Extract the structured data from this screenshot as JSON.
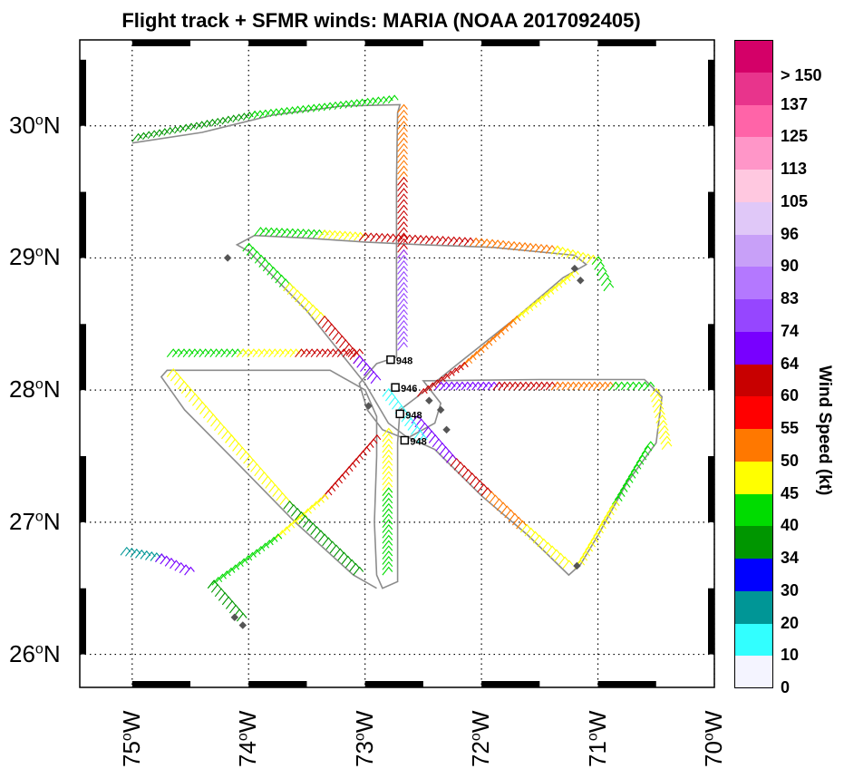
{
  "title": "Flight track + SFMR winds: MARIA (NOAA 2017092405)",
  "lat_labels": [
    {
      "deg": "30",
      "hem": "N"
    },
    {
      "deg": "29",
      "hem": "N"
    },
    {
      "deg": "28",
      "hem": "N"
    },
    {
      "deg": "27",
      "hem": "N"
    },
    {
      "deg": "26",
      "hem": "N"
    }
  ],
  "lon_labels": [
    {
      "deg": "75",
      "hem": "W"
    },
    {
      "deg": "74",
      "hem": "W"
    },
    {
      "deg": "73",
      "hem": "W"
    },
    {
      "deg": "72",
      "hem": "W"
    },
    {
      "deg": "71",
      "hem": "W"
    },
    {
      "deg": "70",
      "hem": "W"
    }
  ],
  "colorbar": {
    "title": "Wind Speed (kt)",
    "labels": [
      "> 150",
      "137",
      "125",
      "113",
      "105",
      "96",
      "90",
      "83",
      "74",
      "64",
      "60",
      "55",
      "50",
      "45",
      "40",
      "34",
      "30",
      "20",
      "10",
      "0"
    ],
    "colors": [
      "#d40068",
      "#e8348c",
      "#ff64a8",
      "#ff96c8",
      "#ffc8e0",
      "#e0c8f8",
      "#c8a0f8",
      "#b478ff",
      "#9646ff",
      "#7800ff",
      "#c80000",
      "#ff0000",
      "#ff7800",
      "#ffff00",
      "#00dc00",
      "#009600",
      "#0000ff",
      "#009696",
      "#32ffff",
      "#f4f4ff"
    ]
  },
  "pressure_labels": [
    "948",
    "946",
    "948",
    "948"
  ],
  "map_extent": {
    "lon_min": -75.45,
    "lon_max": -70.0,
    "lat_min": 25.75,
    "lat_max": 30.65
  },
  "flight_track": [
    [
      -75.0,
      29.87
    ],
    [
      -74.4,
      29.95
    ],
    [
      -73.8,
      30.08
    ],
    [
      -73.2,
      30.15
    ],
    [
      -72.7,
      30.16
    ],
    [
      -72.72,
      30.1
    ],
    [
      -72.73,
      29.6
    ],
    [
      -72.73,
      29.1
    ],
    [
      -72.73,
      28.6
    ],
    [
      -72.73,
      28.25
    ],
    [
      -72.9,
      28.2
    ],
    [
      -73.05,
      28.05
    ],
    [
      -72.98,
      27.85
    ],
    [
      -72.85,
      27.7
    ],
    [
      -72.65,
      27.63
    ],
    [
      -72.4,
      27.75
    ],
    [
      -72.35,
      27.9
    ],
    [
      -72.5,
      28.07
    ],
    [
      -71.5,
      28.08
    ],
    [
      -70.6,
      28.08
    ],
    [
      -70.45,
      27.95
    ],
    [
      -70.5,
      27.6
    ],
    [
      -70.75,
      27.3
    ],
    [
      -71.0,
      26.9
    ],
    [
      -71.15,
      26.68
    ],
    [
      -71.25,
      26.6
    ],
    [
      -71.6,
      26.9
    ],
    [
      -72.0,
      27.2
    ],
    [
      -72.4,
      27.55
    ],
    [
      -72.65,
      27.65
    ],
    [
      -72.8,
      27.75
    ],
    [
      -72.9,
      27.9
    ],
    [
      -73.0,
      28.05
    ],
    [
      -73.5,
      28.6
    ],
    [
      -74.0,
      29.05
    ],
    [
      -74.1,
      29.1
    ],
    [
      -73.95,
      29.17
    ],
    [
      -73.5,
      29.15
    ],
    [
      -73.0,
      29.12
    ],
    [
      -72.5,
      29.1
    ],
    [
      -71.9,
      29.08
    ],
    [
      -71.2,
      29.02
    ],
    [
      -71.1,
      28.95
    ],
    [
      -71.3,
      28.85
    ],
    [
      -71.7,
      28.55
    ],
    [
      -72.2,
      28.2
    ],
    [
      -72.55,
      27.95
    ],
    [
      -72.7,
      27.85
    ],
    [
      -72.72,
      27.6
    ],
    [
      -72.72,
      27.1
    ],
    [
      -72.72,
      26.55
    ],
    [
      -72.85,
      26.5
    ],
    [
      -72.9,
      26.6
    ],
    [
      -72.92,
      27.0
    ],
    [
      -72.9,
      27.5
    ],
    [
      -72.9,
      27.8
    ],
    [
      -73.0,
      28.0
    ],
    [
      -73.3,
      28.15
    ],
    [
      -73.8,
      28.15
    ],
    [
      -74.3,
      28.15
    ],
    [
      -74.7,
      28.15
    ],
    [
      -74.75,
      28.1
    ],
    [
      -74.55,
      27.85
    ],
    [
      -74.1,
      27.45
    ],
    [
      -73.6,
      27.0
    ],
    [
      -73.1,
      26.6
    ],
    [
      -72.9,
      26.5
    ]
  ],
  "barb_segments": [
    {
      "from": [
        -75.0,
        29.88
      ],
      "to": [
        -74.0,
        30.05
      ],
      "color": "#009600"
    },
    {
      "from": [
        -74.0,
        30.05
      ],
      "to": [
        -72.8,
        30.17
      ],
      "color": "#00dc00"
    },
    {
      "from": [
        -72.72,
        30.1
      ],
      "to": [
        -72.72,
        29.55
      ],
      "color": "#ff7800"
    },
    {
      "from": [
        -72.72,
        29.55
      ],
      "to": [
        -72.72,
        29.0
      ],
      "color": "#c80000"
    },
    {
      "from": [
        -72.72,
        29.0
      ],
      "to": [
        -72.72,
        28.3
      ],
      "color": "#9646ff"
    },
    {
      "from": [
        -73.95,
        29.17
      ],
      "to": [
        -73.4,
        29.15
      ],
      "color": "#00dc00"
    },
    {
      "from": [
        -73.4,
        29.15
      ],
      "to": [
        -73.05,
        29.13
      ],
      "color": "#ffff00"
    },
    {
      "from": [
        -73.05,
        29.13
      ],
      "to": [
        -72.1,
        29.09
      ],
      "color": "#c80000"
    },
    {
      "from": [
        -72.1,
        29.09
      ],
      "to": [
        -71.4,
        29.03
      ],
      "color": "#ff7800"
    },
    {
      "from": [
        -71.4,
        29.03
      ],
      "to": [
        -71.05,
        28.95
      ],
      "color": "#ffff00"
    },
    {
      "from": [
        -71.05,
        28.95
      ],
      "to": [
        -70.95,
        28.75
      ],
      "color": "#00dc00"
    },
    {
      "from": [
        -74.05,
        29.05
      ],
      "to": [
        -73.7,
        28.75
      ],
      "color": "#00dc00"
    },
    {
      "from": [
        -73.7,
        28.75
      ],
      "to": [
        -73.4,
        28.5
      ],
      "color": "#ffff00"
    },
    {
      "from": [
        -73.4,
        28.5
      ],
      "to": [
        -73.1,
        28.2
      ],
      "color": "#c80000"
    },
    {
      "from": [
        -73.1,
        28.2
      ],
      "to": [
        -72.95,
        28.05
      ],
      "color": "#7800ff"
    },
    {
      "from": [
        -71.25,
        28.85
      ],
      "to": [
        -71.75,
        28.5
      ],
      "color": "#ffff00"
    },
    {
      "from": [
        -71.75,
        28.5
      ],
      "to": [
        -72.2,
        28.15
      ],
      "color": "#ff7800"
    },
    {
      "from": [
        -72.2,
        28.15
      ],
      "to": [
        -72.55,
        27.95
      ],
      "color": "#c80000"
    },
    {
      "from": [
        -74.7,
        28.25
      ],
      "to": [
        -74.1,
        28.25
      ],
      "color": "#00dc00"
    },
    {
      "from": [
        -74.1,
        28.25
      ],
      "to": [
        -73.6,
        28.25
      ],
      "color": "#ffff00"
    },
    {
      "from": [
        -73.6,
        28.25
      ],
      "to": [
        -73.1,
        28.25
      ],
      "color": "#c80000"
    },
    {
      "from": [
        -72.4,
        28.0
      ],
      "to": [
        -71.9,
        28.0
      ],
      "color": "#7800ff"
    },
    {
      "from": [
        -71.9,
        28.0
      ],
      "to": [
        -71.4,
        28.0
      ],
      "color": "#c80000"
    },
    {
      "from": [
        -71.4,
        28.0
      ],
      "to": [
        -70.9,
        28.0
      ],
      "color": "#ff7800"
    },
    {
      "from": [
        -70.9,
        28.0
      ],
      "to": [
        -70.6,
        28.0
      ],
      "color": "#00dc00"
    },
    {
      "from": [
        -70.55,
        27.95
      ],
      "to": [
        -70.45,
        27.55
      ],
      "color": "#ffff00"
    },
    {
      "from": [
        -70.6,
        27.55
      ],
      "to": [
        -70.9,
        27.1
      ],
      "color": "#00dc00"
    },
    {
      "from": [
        -70.9,
        27.1
      ],
      "to": [
        -71.2,
        26.65
      ],
      "color": "#ffff00"
    },
    {
      "from": [
        -71.3,
        26.65
      ],
      "to": [
        -71.7,
        26.95
      ],
      "color": "#ffff00"
    },
    {
      "from": [
        -71.7,
        26.95
      ],
      "to": [
        -72.0,
        27.2
      ],
      "color": "#ff7800"
    },
    {
      "from": [
        -72.0,
        27.2
      ],
      "to": [
        -72.3,
        27.45
      ],
      "color": "#c80000"
    },
    {
      "from": [
        -72.3,
        27.45
      ],
      "to": [
        -72.6,
        27.75
      ],
      "color": "#7800ff"
    },
    {
      "from": [
        -72.85,
        27.65
      ],
      "to": [
        -72.85,
        27.2
      ],
      "color": "#ffff00"
    },
    {
      "from": [
        -72.85,
        27.2
      ],
      "to": [
        -72.85,
        26.6
      ],
      "color": "#00dc00"
    },
    {
      "from": [
        -72.95,
        27.6
      ],
      "to": [
        -73.4,
        27.15
      ],
      "color": "#c80000"
    },
    {
      "from": [
        -73.4,
        27.15
      ],
      "to": [
        -73.8,
        26.85
      ],
      "color": "#ffff00"
    },
    {
      "from": [
        -73.8,
        26.85
      ],
      "to": [
        -74.35,
        26.5
      ],
      "color": "#00dc00"
    },
    {
      "from": [
        -74.35,
        26.5
      ],
      "to": [
        -74.1,
        26.25
      ],
      "color": "#009600"
    },
    {
      "from": [
        -74.7,
        28.1
      ],
      "to": [
        -74.2,
        27.6
      ],
      "color": "#ffff00"
    },
    {
      "from": [
        -74.2,
        27.6
      ],
      "to": [
        -73.7,
        27.1
      ],
      "color": "#ffff00"
    },
    {
      "from": [
        -73.7,
        27.1
      ],
      "to": [
        -73.1,
        26.6
      ],
      "color": "#009600"
    },
    {
      "from": [
        -75.1,
        26.75
      ],
      "to": [
        -74.8,
        26.7
      ],
      "color": "#009696"
    },
    {
      "from": [
        -74.8,
        26.7
      ],
      "to": [
        -74.55,
        26.6
      ],
      "color": "#7800ff"
    },
    {
      "from": [
        -72.85,
        27.95
      ],
      "to": [
        -72.55,
        27.6
      ],
      "color": "#32ffff"
    }
  ],
  "pressure_points": [
    {
      "lon": -72.78,
      "lat": 28.23,
      "label_index": 0
    },
    {
      "lon": -72.74,
      "lat": 28.02,
      "label_index": 1
    },
    {
      "lon": -72.7,
      "lat": 27.82,
      "label_index": 2
    },
    {
      "lon": -72.66,
      "lat": 27.62,
      "label_index": 3
    }
  ],
  "drop_markers": [
    [
      -74.18,
      29.0
    ],
    [
      -71.2,
      28.92
    ],
    [
      -71.15,
      28.83
    ],
    [
      -72.97,
      27.88
    ],
    [
      -72.45,
      27.92
    ],
    [
      -72.35,
      27.85
    ],
    [
      -72.3,
      27.7
    ],
    [
      -71.18,
      26.67
    ],
    [
      -74.05,
      26.22
    ],
    [
      -74.12,
      26.28
    ]
  ]
}
